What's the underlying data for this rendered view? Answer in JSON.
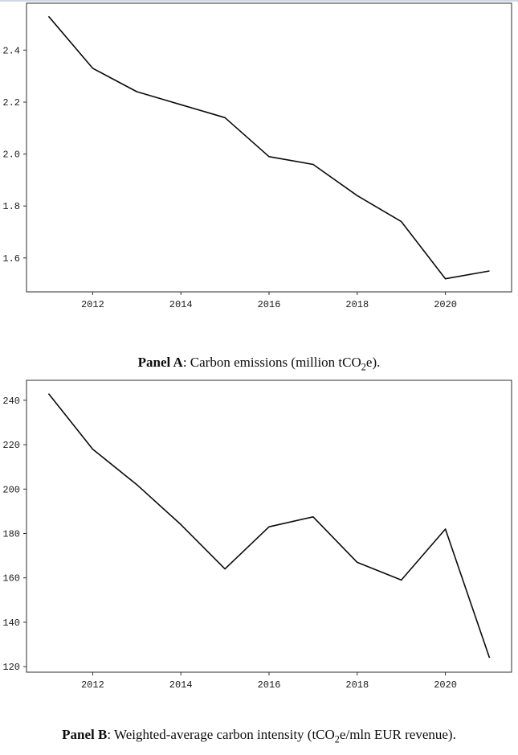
{
  "page": {
    "background": "#ffffff",
    "top_strip_color": "#ccd7e8",
    "line_color": "#0a0a0a",
    "axis_color": "#2e2e2e"
  },
  "chart_data": [
    {
      "type": "line",
      "panel": "A",
      "title": "Panel A: Carbon emissions (million tCO2e).",
      "xlabel": "",
      "ylabel": "",
      "x": [
        2011,
        2012,
        2013,
        2014,
        2015,
        2016,
        2017,
        2018,
        2019,
        2020,
        2021
      ],
      "values": [
        2.53,
        2.33,
        2.24,
        2.19,
        2.14,
        1.99,
        1.96,
        1.84,
        1.74,
        1.52,
        1.55
      ],
      "xlim": [
        2010.5,
        2021.5
      ],
      "ylim": [
        1.4695,
        2.5805
      ],
      "xticks": [
        2012,
        2014,
        2016,
        2018,
        2020
      ],
      "xtick_labels": [
        "2012",
        "2014",
        "2016",
        "2018",
        "2020"
      ],
      "yticks": [
        1.6,
        1.8,
        2.0,
        2.2,
        2.4
      ],
      "ytick_labels": [
        "1.6",
        "1.8",
        "2.0",
        "2.2",
        "2.4"
      ],
      "grid": false,
      "legend": "none",
      "line_color": "#0a0a0a"
    },
    {
      "type": "line",
      "panel": "B",
      "title": "Panel B: Weighted-average carbon intensity (tCO2e/mln EUR revenue).",
      "xlabel": "",
      "ylabel": "",
      "x": [
        2011,
        2012,
        2013,
        2014,
        2015,
        2016,
        2017,
        2018,
        2019,
        2020,
        2021
      ],
      "values": [
        243,
        218,
        202,
        184,
        164,
        183,
        187.5,
        167,
        159,
        182,
        124
      ],
      "xlim": [
        2010.5,
        2021.5
      ],
      "ylim": [
        117.5,
        249.0
      ],
      "xticks": [
        2012,
        2014,
        2016,
        2018,
        2020
      ],
      "xtick_labels": [
        "2012",
        "2014",
        "2016",
        "2018",
        "2020"
      ],
      "yticks": [
        120,
        140,
        160,
        180,
        200,
        220,
        240
      ],
      "ytick_labels": [
        "120",
        "140",
        "160",
        "180",
        "200",
        "220",
        "240"
      ],
      "grid": false,
      "legend": "none",
      "line_color": "#0a0a0a"
    }
  ],
  "captions": {
    "a": {
      "prefix": "Panel A",
      "body_pre": ": Carbon emissions (million tCO",
      "sub": "2",
      "body_post": "e)."
    },
    "b": {
      "prefix": "Panel B",
      "body_pre": ": Weighted-average carbon intensity (tCO",
      "sub": "2",
      "body_post": "e/mln EUR revenue)."
    }
  }
}
